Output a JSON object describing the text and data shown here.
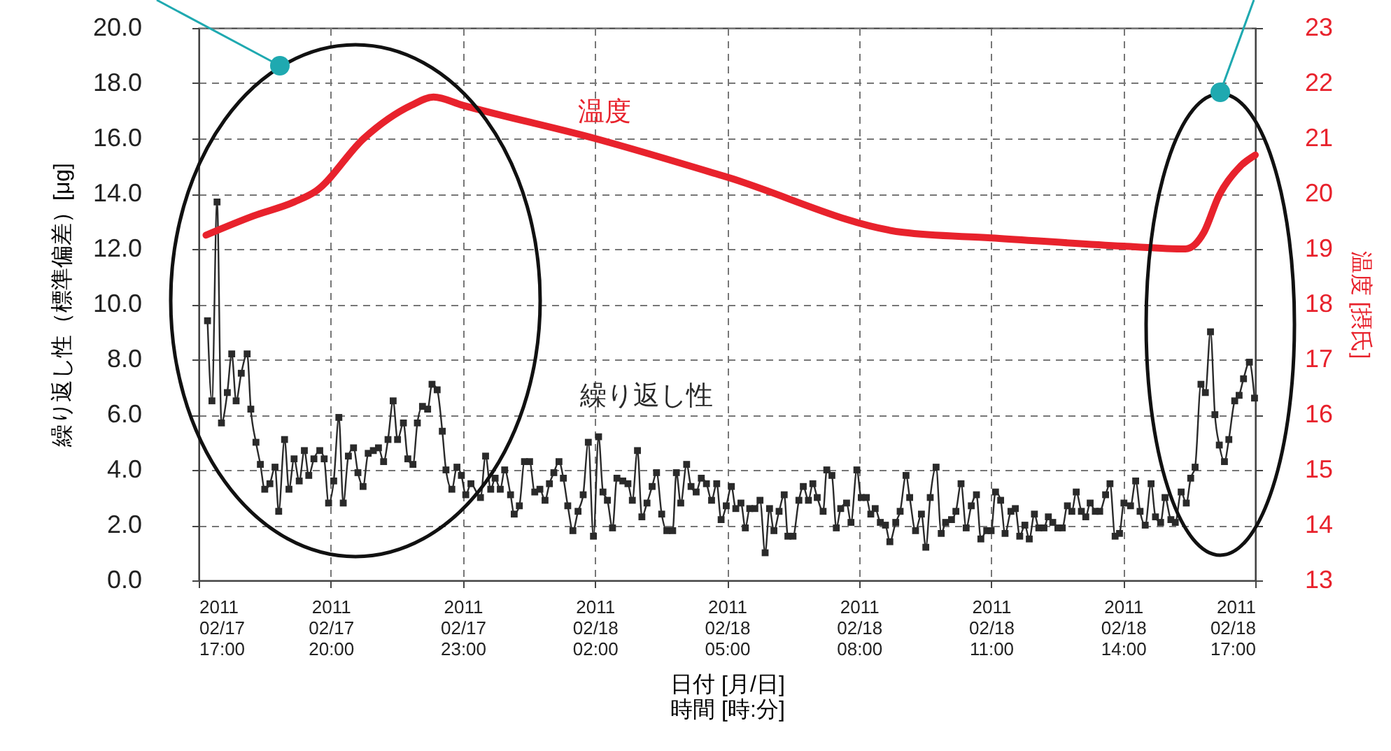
{
  "chart_data": {
    "type": "line",
    "xlabel": "日付 [月/日]\n時間 [時:分]",
    "ylabel": "繰り返し性（標準偏差）[μg]",
    "y2label": "温度 [摂氏]",
    "xlim": [
      "2011-02-17T17:00",
      "2011-02-18T17:00"
    ],
    "xticks": [
      {
        "value": "2011-02-17T17:00",
        "label": "2011\n02/17\n17:00"
      },
      {
        "value": "2011-02-17T20:00",
        "label": "2011\n02/17\n20:00"
      },
      {
        "value": "2011-02-17T23:00",
        "label": "2011\n02/17\n23:00"
      },
      {
        "value": "2011-02-18T02:00",
        "label": "2011\n02/18\n02:00"
      },
      {
        "value": "2011-02-18T05:00",
        "label": "2011\n02/18\n05:00"
      },
      {
        "value": "2011-02-18T08:00",
        "label": "2011\n02/18\n08:00"
      },
      {
        "value": "2011-02-18T11:00",
        "label": "2011\n02/18\n11:00"
      },
      {
        "value": "2011-02-18T14:00",
        "label": "2011\n02/18\n14:00"
      },
      {
        "value": "2011-02-18T17:00",
        "label": "2011\n02/18\n17:00"
      }
    ],
    "ylim": [
      0,
      20
    ],
    "yticks": [
      {
        "value": 0,
        "label": "0.0"
      },
      {
        "value": 2,
        "label": "2.0"
      },
      {
        "value": 4,
        "label": "4.0"
      },
      {
        "value": 6,
        "label": "6.0"
      },
      {
        "value": 8,
        "label": "8.0"
      },
      {
        "value": 10,
        "label": "10.0"
      },
      {
        "value": 12,
        "label": "12.0"
      },
      {
        "value": 14,
        "label": "14.0"
      },
      {
        "value": 16,
        "label": "16.0"
      },
      {
        "value": 18,
        "label": "18.0"
      },
      {
        "value": 20,
        "label": "20.0"
      }
    ],
    "y2lim": [
      13,
      23
    ],
    "y2ticks": [
      13,
      14,
      15,
      16,
      17,
      18,
      19,
      20,
      21,
      22,
      23
    ],
    "grid": true,
    "series": [
      {
        "name": "繰り返し性",
        "color": "#2a2a2a",
        "marker": "square",
        "x": [
          "2011-02-17T17:12",
          "2011-02-17T17:18",
          "2011-02-17T17:25",
          "2011-02-17T17:31",
          "2011-02-17T17:39",
          "2011-02-17T17:45",
          "2011-02-17T17:51",
          "2011-02-17T17:58",
          "2011-02-17T18:06",
          "2011-02-17T18:11",
          "2011-02-17T18:18",
          "2011-02-17T18:24",
          "2011-02-17T18:30",
          "2011-02-17T18:37",
          "2011-02-17T18:44",
          "2011-02-17T18:49",
          "2011-02-17T18:57",
          "2011-02-17T19:03",
          "2011-02-17T19:10",
          "2011-02-17T19:17",
          "2011-02-17T19:24",
          "2011-02-17T19:30",
          "2011-02-17T19:37",
          "2011-02-17T19:45",
          "2011-02-17T19:51",
          "2011-02-17T19:57",
          "2011-02-17T20:04",
          "2011-02-17T20:11",
          "2011-02-17T20:17",
          "2011-02-17T20:24",
          "2011-02-17T20:31",
          "2011-02-17T20:37",
          "2011-02-17T20:44",
          "2011-02-17T20:51",
          "2011-02-17T20:58",
          "2011-02-17T21:05",
          "2011-02-17T21:12",
          "2011-02-17T21:18",
          "2011-02-17T21:25",
          "2011-02-17T21:31",
          "2011-02-17T21:39",
          "2011-02-17T21:45",
          "2011-02-17T21:52",
          "2011-02-17T21:58",
          "2011-02-17T22:05",
          "2011-02-17T22:12",
          "2011-02-17T22:18",
          "2011-02-17T22:25",
          "2011-02-17T22:32",
          "2011-02-17T22:37",
          "2011-02-17T22:45",
          "2011-02-17T22:52",
          "2011-02-17T22:58",
          "2011-02-17T23:04",
          "2011-02-17T23:11",
          "2011-02-17T23:24",
          "2011-02-17T23:31",
          "2011-02-17T23:38",
          "2011-02-17T23:44",
          "2011-02-17T23:51",
          "2011-02-17T23:57",
          "2011-02-18T00:05",
          "2011-02-18T00:10",
          "2011-02-18T00:17",
          "2011-02-18T00:24",
          "2011-02-18T00:31",
          "2011-02-18T00:38",
          "2011-02-18T00:45",
          "2011-02-18T00:52",
          "2011-02-18T00:58",
          "2011-02-18T01:04",
          "2011-02-18T01:11",
          "2011-02-18T01:17",
          "2011-02-18T01:23",
          "2011-02-18T01:30",
          "2011-02-18T01:37",
          "2011-02-18T01:44",
          "2011-02-18T01:51",
          "2011-02-18T01:58",
          "2011-02-18T02:05",
          "2011-02-18T02:11",
          "2011-02-18T02:17",
          "2011-02-18T02:24",
          "2011-02-18T02:30",
          "2011-02-18T02:38",
          "2011-02-18T02:45",
          "2011-02-18T02:51",
          "2011-02-18T02:58",
          "2011-02-18T03:04",
          "2011-02-18T03:11",
          "2011-02-18T03:18",
          "2011-02-18T03:24",
          "2011-02-18T03:31",
          "2011-02-18T03:38",
          "2011-02-18T03:46",
          "2011-02-18T03:51",
          "2011-02-18T03:57",
          "2011-02-18T04:05",
          "2011-02-18T04:11",
          "2011-02-18T04:18",
          "2011-02-18T04:25",
          "2011-02-18T04:32",
          "2011-02-18T04:39",
          "2011-02-18T04:46",
          "2011-02-18T04:52",
          "2011-02-18T04:59",
          "2011-02-18T05:06",
          "2011-02-18T05:12",
          "2011-02-18T05:19",
          "2011-02-18T05:25",
          "2011-02-18T05:31",
          "2011-02-18T05:38",
          "2011-02-18T05:45",
          "2011-02-18T05:52",
          "2011-02-18T05:58",
          "2011-02-18T06:04",
          "2011-02-18T06:11",
          "2011-02-18T06:18",
          "2011-02-18T06:23",
          "2011-02-18T06:30",
          "2011-02-18T06:38",
          "2011-02-18T06:44",
          "2011-02-18T06:51",
          "2011-02-18T06:57",
          "2011-02-18T07:03",
          "2011-02-18T07:11",
          "2011-02-18T07:16",
          "2011-02-18T07:23",
          "2011-02-18T07:29",
          "2011-02-18T07:35",
          "2011-02-18T07:43",
          "2011-02-18T07:49",
          "2011-02-18T07:57",
          "2011-02-18T08:03",
          "2011-02-18T08:10",
          "2011-02-18T08:16",
          "2011-02-18T08:22",
          "2011-02-18T08:29",
          "2011-02-18T08:36",
          "2011-02-18T08:42",
          "2011-02-18T08:50",
          "2011-02-18T08:56",
          "2011-02-18T09:04",
          "2011-02-18T09:09",
          "2011-02-18T09:17",
          "2011-02-18T09:25",
          "2011-02-18T09:31",
          "2011-02-18T09:37",
          "2011-02-18T09:45",
          "2011-02-18T09:52",
          "2011-02-18T09:58",
          "2011-02-18T10:06",
          "2011-02-18T10:12",
          "2011-02-18T10:19",
          "2011-02-18T10:26",
          "2011-02-18T10:33",
          "2011-02-18T10:40",
          "2011-02-18T10:46",
          "2011-02-18T10:54",
          "2011-02-18T11:00",
          "2011-02-18T11:06",
          "2011-02-18T11:13",
          "2011-02-18T11:19",
          "2011-02-18T11:27",
          "2011-02-18T11:33",
          "2011-02-18T11:39",
          "2011-02-18T11:46",
          "2011-02-18T11:52",
          "2011-02-18T11:59",
          "2011-02-18T12:05",
          "2011-02-18T12:12",
          "2011-02-18T12:18",
          "2011-02-18T12:24",
          "2011-02-18T12:31",
          "2011-02-18T12:37",
          "2011-02-18T12:44",
          "2011-02-18T12:50",
          "2011-02-18T12:56",
          "2011-02-18T13:03",
          "2011-02-18T13:09",
          "2011-02-18T13:15",
          "2011-02-18T13:22",
          "2011-02-18T13:28",
          "2011-02-18T13:36",
          "2011-02-18T13:42",
          "2011-02-18T13:49",
          "2011-02-18T13:55",
          "2011-02-18T14:01",
          "2011-02-18T14:10",
          "2011-02-18T14:17",
          "2011-02-18T14:23",
          "2011-02-18T14:30",
          "2011-02-18T14:38",
          "2011-02-18T14:44",
          "2011-02-18T14:51",
          "2011-02-18T14:57",
          "2011-02-18T15:05",
          "2011-02-18T15:11",
          "2011-02-18T15:19",
          "2011-02-18T15:26",
          "2011-02-18T15:32",
          "2011-02-18T15:38",
          "2011-02-18T15:46",
          "2011-02-18T15:52",
          "2011-02-18T15:59",
          "2011-02-18T16:05",
          "2011-02-18T16:11",
          "2011-02-18T16:18",
          "2011-02-18T16:24",
          "2011-02-18T16:32",
          "2011-02-18T16:38",
          "2011-02-18T16:44",
          "2011-02-18T16:52",
          "2011-02-18T16:59"
        ],
        "values": [
          9.4,
          6.5,
          13.7,
          5.7,
          6.8,
          8.2,
          6.5,
          7.5,
          8.2,
          6.2,
          5.0,
          4.2,
          3.3,
          3.5,
          4.1,
          2.5,
          5.1,
          3.3,
          4.4,
          3.6,
          4.7,
          3.8,
          4.4,
          4.7,
          4.4,
          2.8,
          3.6,
          5.9,
          2.8,
          4.5,
          4.8,
          3.9,
          3.4,
          4.6,
          4.7,
          4.8,
          4.3,
          5.1,
          6.5,
          5.1,
          5.7,
          4.4,
          4.2,
          5.7,
          6.3,
          6.2,
          7.1,
          6.9,
          5.4,
          4.0,
          3.3,
          4.1,
          3.8,
          3.1,
          3.5,
          3.0,
          4.5,
          3.3,
          3.7,
          3.3,
          4.0,
          3.1,
          2.4,
          2.7,
          4.3,
          4.3,
          3.2,
          3.3,
          2.9,
          3.5,
          3.9,
          4.3,
          3.7,
          2.7,
          1.8,
          2.5,
          3.1,
          5.0,
          1.6,
          5.2,
          3.2,
          2.9,
          1.9,
          3.7,
          3.6,
          3.5,
          2.9,
          4.7,
          2.3,
          2.8,
          3.4,
          3.9,
          2.4,
          1.8,
          1.8,
          3.9,
          2.8,
          4.2,
          3.4,
          3.2,
          3.7,
          3.5,
          2.9,
          3.5,
          2.2,
          2.7,
          3.4,
          2.6,
          2.8,
          1.9,
          2.6,
          2.6,
          2.9,
          1.0,
          2.6,
          1.8,
          2.5,
          3.1,
          1.6,
          1.6,
          2.9,
          3.4,
          2.9,
          3.5,
          3.0,
          2.5,
          4.0,
          3.8,
          1.9,
          2.6,
          2.8,
          2.1,
          4.0,
          3.0,
          3.0,
          2.4,
          2.6,
          2.1,
          2.0,
          1.4,
          2.1,
          2.5,
          3.8,
          3.0,
          1.8,
          2.4,
          1.2,
          3.0,
          4.1,
          1.7,
          2.1,
          2.2,
          2.5,
          3.5,
          1.9,
          2.7,
          3.1,
          1.5,
          1.8,
          1.8,
          3.2,
          2.9,
          1.7,
          2.5,
          2.6,
          1.6,
          2.0,
          1.5,
          2.4,
          1.9,
          1.9,
          2.3,
          2.1,
          1.9,
          1.9,
          2.7,
          2.5,
          3.2,
          2.5,
          2.3,
          2.8,
          2.5,
          2.5,
          3.1,
          3.5,
          1.6,
          1.7,
          2.8,
          2.7,
          3.6,
          2.5,
          2.0,
          3.5,
          2.3,
          2.1,
          3.0,
          2.2,
          2.1,
          3.2,
          2.8,
          3.7,
          4.1,
          7.1,
          6.8,
          9.0,
          6.0,
          4.9,
          4.3,
          5.1,
          6.5,
          6.7,
          7.3,
          7.9,
          6.6
        ]
      },
      {
        "name": "温度",
        "color": "#e8222c",
        "marker": "none",
        "axis": "y2",
        "x": [
          "2011-02-17T17:10",
          "2011-02-17T18:15",
          "2011-02-17T19:10",
          "2011-02-17T19:40",
          "2011-02-17T20:45",
          "2011-02-17T21:50",
          "2011-02-17T22:20",
          "2011-02-17T23:00",
          "2011-02-18T02:00",
          "2011-02-18T05:00",
          "2011-02-18T09:00",
          "2011-02-18T11:00",
          "2011-02-18T14:00",
          "2011-02-18T15:25",
          "2011-02-18T15:50",
          "2011-02-18T16:10",
          "2011-02-18T16:40",
          "2011-02-18T17:00"
        ],
        "values": [
          19.25,
          19.6,
          19.85,
          20.05,
          21.0,
          21.6,
          21.75,
          21.6,
          21.0,
          20.3,
          19.3,
          19.2,
          19.05,
          19.0,
          19.3,
          19.95,
          20.5,
          20.7
        ]
      }
    ]
  }
}
